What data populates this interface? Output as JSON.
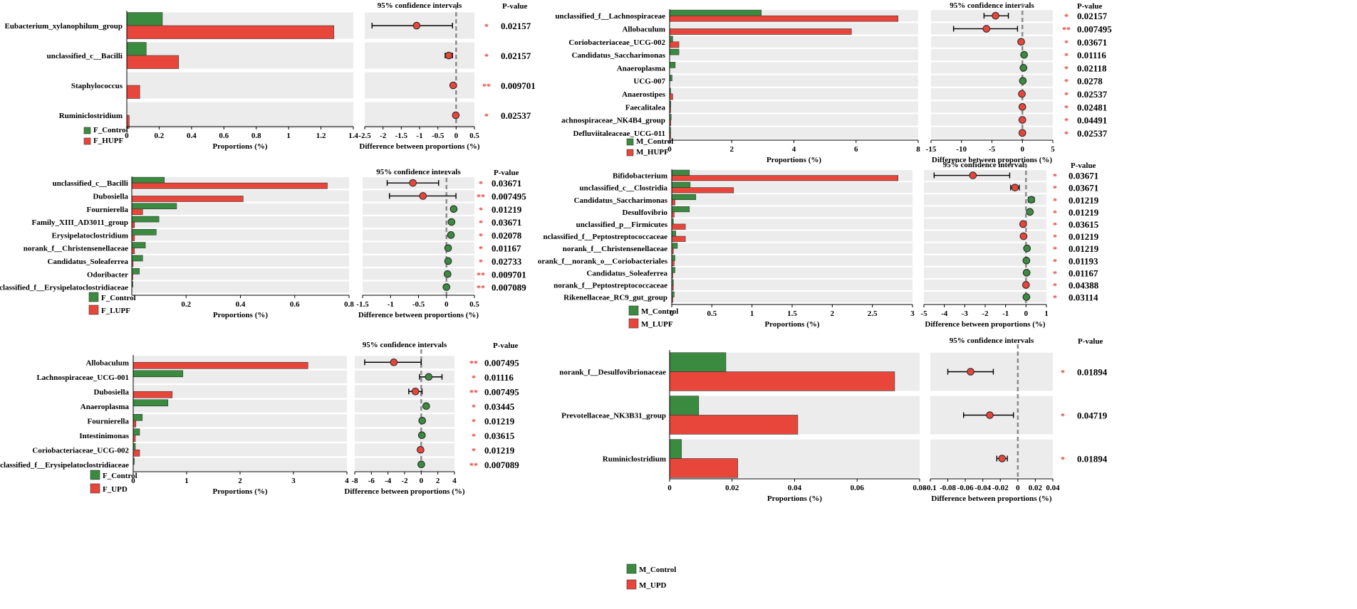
{
  "colors": {
    "control": "#3a8b3f",
    "treat": "#e8463a",
    "rowbg": "#ececec",
    "dash": "#888888"
  },
  "chart_data": [
    {
      "type": "bar",
      "panel": "female-hupf",
      "categories": [
        "Eubacterium_xylanophilum_group",
        "unclassified_c__Bacilli",
        "Staphylococcus",
        "Ruminiclostridium"
      ],
      "series": [
        {
          "name": "F_Control",
          "values": [
            0.22,
            0.12,
            0.0,
            0.0
          ]
        },
        {
          "name": "F_HUPF",
          "values": [
            1.28,
            0.32,
            0.08,
            0.015
          ]
        }
      ],
      "xlim": [
        0,
        1.4
      ],
      "xticks": [
        "0",
        "0.2",
        "0.4",
        "0.6",
        "0.8",
        "1",
        "1.2",
        "1.4"
      ],
      "xlabel": "Proportions (%)",
      "ci": {
        "title": "95% confidence intervals",
        "xlabel": "Difference between proportions (%)",
        "xlim": [
          -2.5,
          0.5
        ],
        "xticks": [
          "-2.5",
          "-2",
          "-1.5",
          "-1",
          "-0.5",
          "0",
          "0.5"
        ],
        "points": [
          {
            "est": -1.08,
            "lo": -2.3,
            "hi": -0.1,
            "group": "treat"
          },
          {
            "est": -0.2,
            "lo": -0.3,
            "hi": -0.1,
            "group": "treat"
          },
          {
            "est": -0.08,
            "lo": -0.08,
            "hi": -0.08,
            "group": "treat"
          },
          {
            "est": -0.01,
            "lo": -0.01,
            "hi": -0.01,
            "group": "treat"
          }
        ]
      },
      "pvalue_title": "P-value",
      "pvalues": [
        "0.02157",
        "0.02157",
        "0.009701",
        "0.02537"
      ],
      "stars": [
        "*",
        "*",
        "**",
        "*"
      ],
      "legend": [
        "F_Control",
        "F_HUPF"
      ]
    },
    {
      "type": "bar",
      "panel": "male-hupf",
      "categories": [
        "unclassified_f__Lachnospiraceae",
        "Allobaculum",
        "Coriobacteriaceae_UCG-002",
        "Candidatus_Saccharimonas",
        "Anaeroplasma",
        "UCG-007",
        "Anaerostipes",
        "Faecalitalea",
        "achnospiraceae_NK4B4_group",
        "Defluviitaleaceae_UCG-011"
      ],
      "series": [
        {
          "name": "M_Control",
          "values": [
            2.95,
            0.0,
            0.1,
            0.3,
            0.18,
            0.08,
            0.02,
            0.04,
            0.05,
            0.03
          ]
        },
        {
          "name": "M_HUPF",
          "values": [
            7.35,
            5.85,
            0.3,
            0.0,
            0.0,
            0.0,
            0.1,
            0.03,
            0.04,
            0.03
          ]
        }
      ],
      "xlim": [
        0,
        8
      ],
      "xticks": [
        "0",
        "2",
        "4",
        "6",
        "8"
      ],
      "xlabel": "Proportions (%)",
      "ci": {
        "title": "95% confidence intervals",
        "xlabel": "Difference between proportions (%)",
        "xlim": [
          -15,
          5
        ],
        "xticks": [
          "-15",
          "-10",
          "-5",
          "0",
          "5"
        ],
        "points": [
          {
            "est": -4.4,
            "lo": -6.3,
            "hi": -2.3,
            "group": "treat"
          },
          {
            "est": -5.9,
            "lo": -11.3,
            "hi": -0.8,
            "group": "treat"
          },
          {
            "est": -0.2,
            "lo": -0.2,
            "hi": -0.2,
            "group": "treat"
          },
          {
            "est": 0.28,
            "lo": 0.28,
            "hi": 0.28,
            "group": "control"
          },
          {
            "est": 0.18,
            "lo": 0.18,
            "hi": 0.18,
            "group": "control"
          },
          {
            "est": 0.08,
            "lo": 0.08,
            "hi": 0.08,
            "group": "control"
          },
          {
            "est": -0.08,
            "lo": -0.08,
            "hi": -0.08,
            "group": "treat"
          },
          {
            "est": 0.0,
            "lo": 0.0,
            "hi": 0.0,
            "group": "treat"
          },
          {
            "est": 0.0,
            "lo": 0.0,
            "hi": 0.0,
            "group": "treat"
          },
          {
            "est": 0.0,
            "lo": 0.0,
            "hi": 0.0,
            "group": "treat"
          }
        ]
      },
      "pvalue_title": "P-value",
      "pvalues": [
        "0.02157",
        "0.007495",
        "0.03671",
        "0.01116",
        "0.02118",
        "0.0278",
        "0.02537",
        "0.02481",
        "0.04491",
        "0.02537"
      ],
      "stars": [
        "*",
        "**",
        "*",
        "*",
        "*",
        "*",
        "*",
        "*",
        "*",
        "*"
      ],
      "legend": [
        "M_Control",
        "M_HUPF"
      ]
    },
    {
      "type": "bar",
      "panel": "female-lupf",
      "categories": [
        "unclassified_c__Bacilli",
        "Dubosiella",
        "Fournierella",
        "Family_XIII_AD3011_group",
        "Erysipelatoclostridium",
        "norank_f__Christensenellaceae",
        "Candidatus_Soleaferrea",
        "Odoribacter",
        "unclassified_f__Erysipelatoclostridiaceae"
      ],
      "series": [
        {
          "name": "F_Control",
          "values": [
            0.12,
            0.0,
            0.165,
            0.1,
            0.09,
            0.05,
            0.04,
            0.028,
            0.004
          ]
        },
        {
          "name": "F_LUPF",
          "values": [
            0.72,
            0.41,
            0.04,
            0.01,
            0.01,
            0.01,
            0.005,
            0.002,
            0.0
          ]
        }
      ],
      "xlim": [
        0,
        0.8
      ],
      "xticks": [
        "0.2",
        "0.4",
        "0.6",
        "0.8"
      ],
      "xlabel": "Proportions (%)",
      "ci": {
        "title": "95% confidence intervals",
        "xlabel": "Difference between proportions (%)",
        "xlim": [
          -1.5,
          0.5
        ],
        "xticks": [
          "-1.5",
          "-1",
          "-0.5",
          "0",
          "0.5"
        ],
        "points": [
          {
            "est": -0.6,
            "lo": -1.06,
            "hi": -0.14,
            "group": "treat"
          },
          {
            "est": -0.42,
            "lo": -1.02,
            "hi": 0.17,
            "group": "treat"
          },
          {
            "est": 0.13,
            "lo": 0.13,
            "hi": 0.13,
            "group": "control"
          },
          {
            "est": 0.09,
            "lo": 0.09,
            "hi": 0.09,
            "group": "control"
          },
          {
            "est": 0.08,
            "lo": 0.08,
            "hi": 0.08,
            "group": "control"
          },
          {
            "est": 0.03,
            "lo": 0.03,
            "hi": 0.03,
            "group": "control"
          },
          {
            "est": 0.03,
            "lo": 0.03,
            "hi": 0.03,
            "group": "control"
          },
          {
            "est": 0.02,
            "lo": 0.02,
            "hi": 0.02,
            "group": "control"
          },
          {
            "est": 0.0,
            "lo": 0.0,
            "hi": 0.0,
            "group": "control"
          }
        ]
      },
      "pvalue_title": "P-value",
      "pvalues": [
        "0.03671",
        "0.007495",
        "0.01219",
        "0.03671",
        "0.02078",
        "0.01167",
        "0.02733",
        "0.009701",
        "0.007089"
      ],
      "stars": [
        "*",
        "**",
        "*",
        "*",
        "*",
        "*",
        "*",
        "**",
        "**"
      ],
      "legend": [
        "F_Control",
        "F_LUPF"
      ]
    },
    {
      "type": "bar",
      "panel": "male-lupf",
      "categories": [
        "Bifidobacterium",
        "unclassified_c__Clostridia",
        "Candidatus_Saccharimonas",
        "Desulfovibrio",
        "unclassified_p__Firmicutes",
        "nclassified_f__Peptostreptococcaceae",
        "norank_f__Christensenellaceae",
        "orank_f__norank_o__Coriobacteriales",
        "Candidatus_Soleaferrea",
        "norank_f__Peptostreptococcaceae",
        "Rikenellaceae_RC9_gut_group"
      ],
      "series": [
        {
          "name": "M_Control",
          "values": [
            0.22,
            0.23,
            0.3,
            0.22,
            0.02,
            0.05,
            0.07,
            0.04,
            0.04,
            0.02,
            0.03
          ]
        },
        {
          "name": "M_LUPF",
          "values": [
            2.82,
            0.77,
            0.04,
            0.03,
            0.17,
            0.17,
            0.02,
            0.03,
            0.01,
            0.02,
            0.01
          ]
        }
      ],
      "xlim": [
        0,
        3
      ],
      "xticks": [
        "0",
        "0.5",
        "1",
        "1.5",
        "2",
        "2.5",
        "3"
      ],
      "xlabel": "Proportions (%)",
      "ci": {
        "title": "95% confidence intervals",
        "xlabel": "Difference between proportions (%)",
        "xlim": [
          -5,
          1
        ],
        "xticks": [
          "-5",
          "-4",
          "-3",
          "-2",
          "-1",
          "0",
          "1"
        ],
        "points": [
          {
            "est": -2.6,
            "lo": -4.5,
            "hi": -0.8,
            "group": "treat"
          },
          {
            "est": -0.54,
            "lo": -0.75,
            "hi": -0.33,
            "group": "treat"
          },
          {
            "est": 0.26,
            "lo": 0.12,
            "hi": 0.4,
            "group": "control"
          },
          {
            "est": 0.19,
            "lo": 0.19,
            "hi": 0.19,
            "group": "control"
          },
          {
            "est": -0.14,
            "lo": -0.14,
            "hi": -0.14,
            "group": "treat"
          },
          {
            "est": -0.12,
            "lo": -0.12,
            "hi": -0.12,
            "group": "treat"
          },
          {
            "est": 0.05,
            "lo": 0.05,
            "hi": 0.05,
            "group": "control"
          },
          {
            "est": 0.02,
            "lo": 0.02,
            "hi": 0.02,
            "group": "control"
          },
          {
            "est": 0.03,
            "lo": 0.03,
            "hi": 0.03,
            "group": "control"
          },
          {
            "est": 0.0,
            "lo": 0.0,
            "hi": 0.0,
            "group": "treat"
          },
          {
            "est": 0.02,
            "lo": 0.02,
            "hi": 0.02,
            "group": "control"
          }
        ]
      },
      "pvalue_title": "P-value",
      "pvalues": [
        "0.03671",
        "0.03671",
        "0.01219",
        "0.01219",
        "0.03615",
        "0.01219",
        "0.01219",
        "0.01193",
        "0.01167",
        "0.04388",
        "0.03114"
      ],
      "stars": [
        "*",
        "*",
        "*",
        "*",
        "*",
        "*",
        "*",
        "*",
        "*",
        "*",
        "*"
      ],
      "legend": [
        "M_Control",
        "M_LUPF"
      ]
    },
    {
      "type": "bar",
      "panel": "female-upd",
      "categories": [
        "Allobaculum",
        "Lachnospiraceae_UCG-001",
        "Dubosiella",
        "Anaeroplasma",
        "Fournierella",
        "Intestinimonas",
        "Coriobacteriaceae_UCG-002",
        "unclassified_f__Erysipelatoclostridiaceae"
      ],
      "series": [
        {
          "name": "F_Control",
          "values": [
            0.0,
            0.93,
            0.0,
            0.65,
            0.17,
            0.12,
            0.04,
            0.01
          ]
        },
        {
          "name": "F_UPD",
          "values": [
            3.27,
            0.0,
            0.73,
            0.0,
            0.05,
            0.04,
            0.12,
            0.0
          ]
        }
      ],
      "xlim": [
        0,
        4
      ],
      "xticks": [
        "0",
        "1",
        "2",
        "3",
        "4"
      ],
      "xlabel": "Proportions (%)",
      "ci": {
        "title": "95% confidence intervals",
        "xlabel": "Difference between proportions (%)",
        "xlim": [
          -8,
          4
        ],
        "xticks": [
          "-8",
          "-6",
          "-4",
          "-2",
          "0",
          "2",
          "4"
        ],
        "points": [
          {
            "est": -3.3,
            "lo": -6.8,
            "hi": 0.0,
            "group": "treat"
          },
          {
            "est": 0.9,
            "lo": -0.2,
            "hi": 2.5,
            "group": "control"
          },
          {
            "est": -0.7,
            "lo": -1.5,
            "hi": 0.1,
            "group": "treat"
          },
          {
            "est": 0.6,
            "lo": 0.6,
            "hi": 0.6,
            "group": "control"
          },
          {
            "est": 0.12,
            "lo": 0.12,
            "hi": 0.12,
            "group": "control"
          },
          {
            "est": 0.08,
            "lo": 0.08,
            "hi": 0.08,
            "group": "control"
          },
          {
            "est": -0.08,
            "lo": -0.08,
            "hi": -0.08,
            "group": "treat"
          },
          {
            "est": 0.01,
            "lo": 0.01,
            "hi": 0.01,
            "group": "control"
          }
        ]
      },
      "pvalue_title": "P-value",
      "pvalues": [
        "0.007495",
        "0.01116",
        "0.007495",
        "0.03445",
        "0.01219",
        "0.03615",
        "0.01219",
        "0.007089"
      ],
      "stars": [
        "**",
        "*",
        "**",
        "*",
        "*",
        "*",
        "*",
        "**"
      ],
      "legend": [
        "F_Control",
        "F_UPD"
      ]
    },
    {
      "type": "bar",
      "panel": "male-upd",
      "categories": [
        "norank_f__Desulfovibrionaceae",
        "Prevotellaceae_NK3B31_group",
        "Ruminiclostridium"
      ],
      "series": [
        {
          "name": "M_Control",
          "values": [
            0.018,
            0.0093,
            0.0038
          ]
        },
        {
          "name": "M_UPD",
          "values": [
            0.072,
            0.041,
            0.0218
          ]
        }
      ],
      "xlim": [
        0,
        0.08
      ],
      "xticks": [
        "0",
        "0.02",
        "0.04",
        "0.06",
        "0.08"
      ],
      "xlabel": "Proportions (%)",
      "ci": {
        "title": "95% confidence intervals",
        "xlabel": "Difference between proportions (%)",
        "xlim": [
          -0.1,
          0.04
        ],
        "xticks": [
          "-0.1",
          "-0.08",
          "-0.06",
          "-0.04",
          "-0.02",
          "0",
          "0.02",
          "0.04"
        ],
        "points": [
          {
            "est": -0.054,
            "lo": -0.08,
            "hi": -0.028,
            "group": "treat"
          },
          {
            "est": -0.032,
            "lo": -0.062,
            "hi": -0.005,
            "group": "treat"
          },
          {
            "est": -0.018,
            "lo": -0.024,
            "hi": -0.012,
            "group": "treat"
          }
        ]
      },
      "pvalue_title": "P-value",
      "pvalues": [
        "0.01894",
        "0.04719",
        "0.01894"
      ],
      "stars": [
        "*",
        "*",
        "*"
      ],
      "legend": [
        "M_Control",
        "M_UPD"
      ]
    }
  ]
}
